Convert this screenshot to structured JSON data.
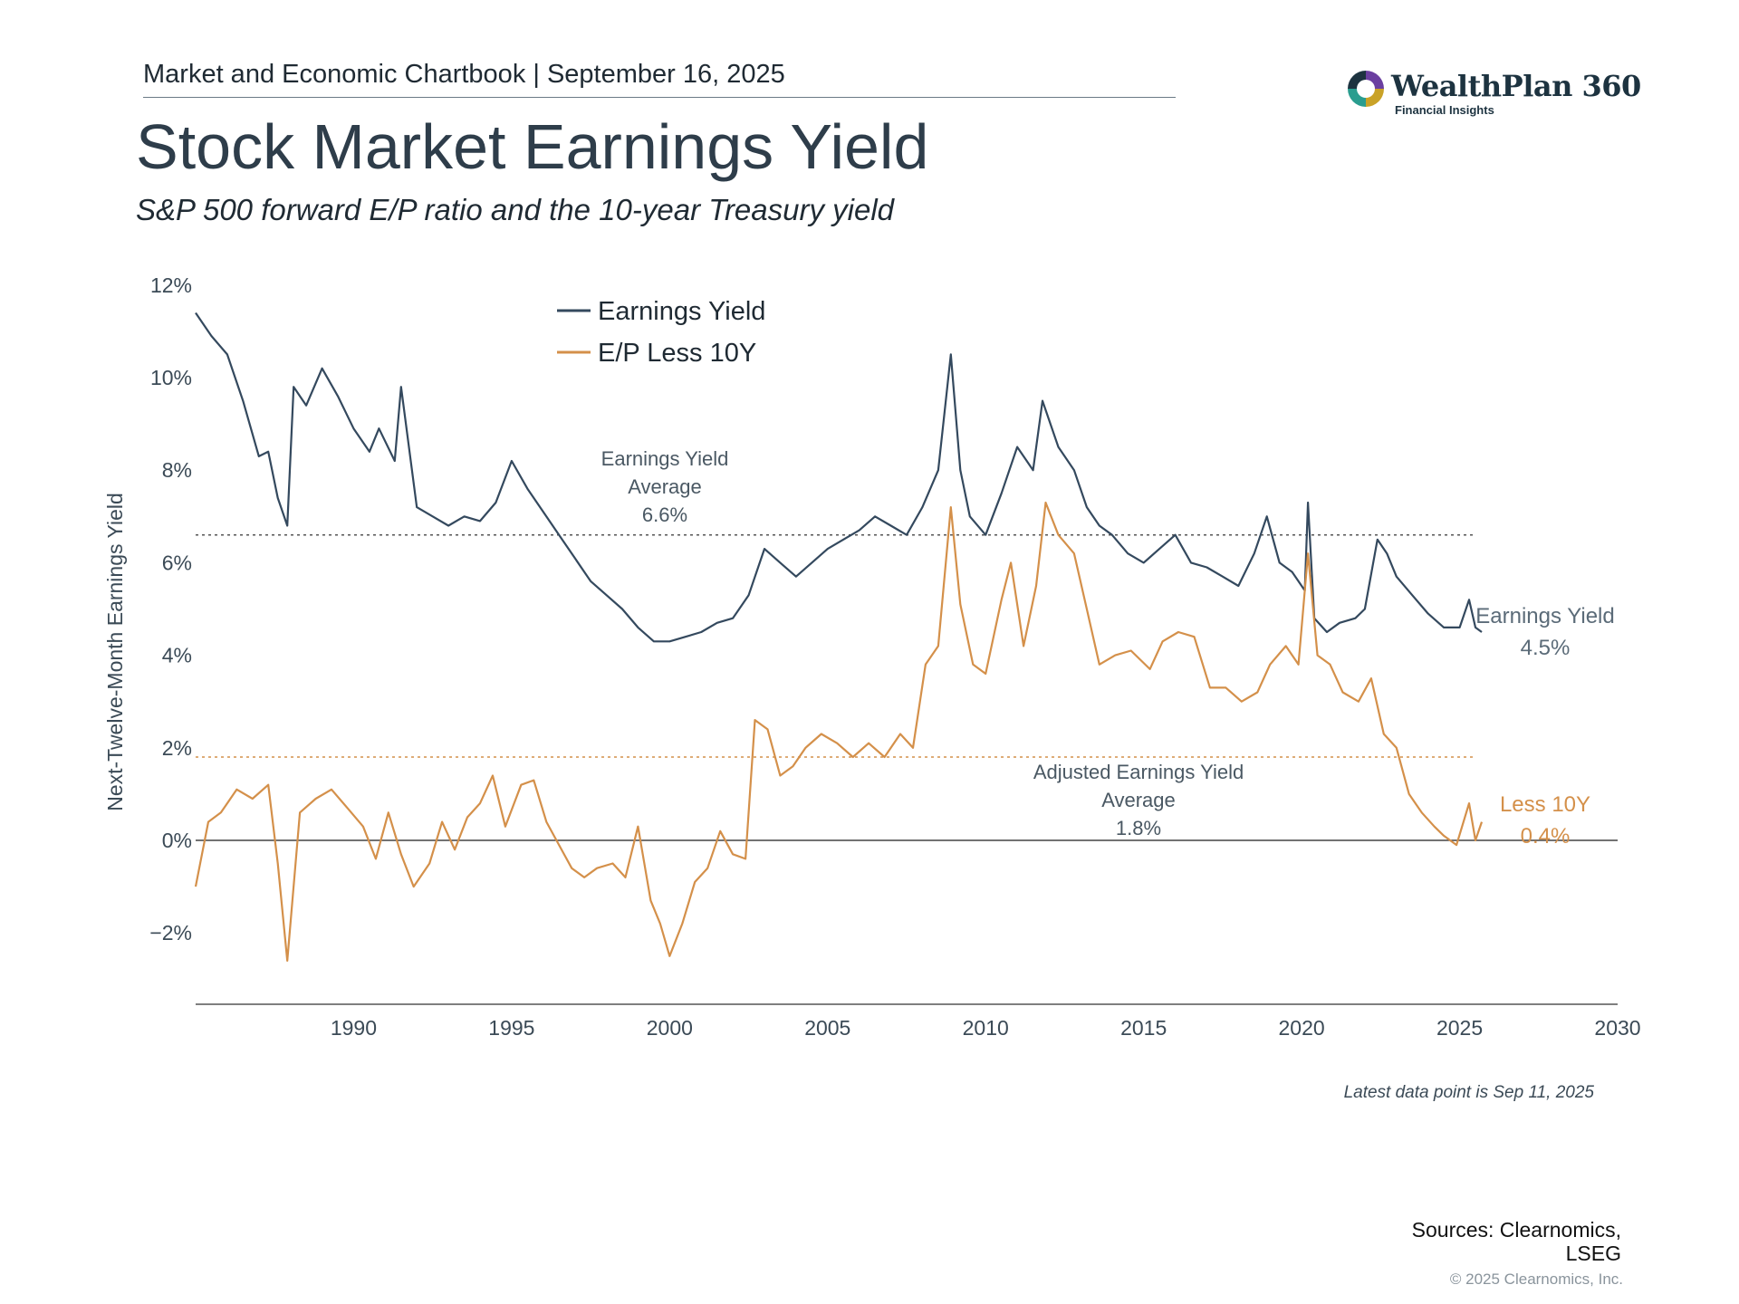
{
  "header": {
    "chartbook_line": "Market and Economic Chartbook | September 16, 2025",
    "title": "Stock Market Earnings Yield",
    "subtitle": "S&P 500 forward E/P ratio and the 10-year Treasury yield"
  },
  "logo": {
    "name": "WealthPlan 360",
    "tagline": "Financial Insights",
    "colors": [
      "#6b3fa0",
      "#2a9d8f",
      "#c9a227",
      "#1d3340"
    ]
  },
  "chart_data": {
    "type": "line",
    "ylabel": "Next-Twelve-Month Earnings Yield",
    "xlim": [
      1985,
      2030
    ],
    "ylim": [
      -3.5,
      12
    ],
    "y_ticks": [
      12,
      10,
      8,
      6,
      4,
      2,
      0,
      -2
    ],
    "y_tick_labels": [
      "12%",
      "10%",
      "8%",
      "6%",
      "4%",
      "2%",
      "0%",
      "−2%"
    ],
    "x_ticks": [
      1990,
      1995,
      2000,
      2005,
      2010,
      2015,
      2020,
      2025,
      2030
    ],
    "x_tick_labels": [
      "1990",
      "1995",
      "2000",
      "2005",
      "2010",
      "2015",
      "2020",
      "2025",
      "2030"
    ],
    "legend": {
      "position": "top-left",
      "entries": [
        "Earnings Yield",
        "E/P Less 10Y"
      ]
    },
    "series": [
      {
        "name": "Earnings Yield",
        "color": "#34495e",
        "points": [
          [
            1985.0,
            11.4
          ],
          [
            1985.5,
            10.9
          ],
          [
            1986.0,
            10.5
          ],
          [
            1986.5,
            9.5
          ],
          [
            1987.0,
            8.3
          ],
          [
            1987.3,
            8.4
          ],
          [
            1987.6,
            7.4
          ],
          [
            1987.9,
            6.8
          ],
          [
            1988.1,
            9.8
          ],
          [
            1988.5,
            9.4
          ],
          [
            1989.0,
            10.2
          ],
          [
            1989.5,
            9.6
          ],
          [
            1990.0,
            8.9
          ],
          [
            1990.5,
            8.4
          ],
          [
            1990.8,
            8.9
          ],
          [
            1991.3,
            8.2
          ],
          [
            1991.5,
            9.8
          ],
          [
            1992.0,
            7.2
          ],
          [
            1992.5,
            7.0
          ],
          [
            1993.0,
            6.8
          ],
          [
            1993.5,
            7.0
          ],
          [
            1994.0,
            6.9
          ],
          [
            1994.5,
            7.3
          ],
          [
            1995.0,
            8.2
          ],
          [
            1995.5,
            7.6
          ],
          [
            1996.0,
            7.1
          ],
          [
            1996.5,
            6.6
          ],
          [
            1997.0,
            6.1
          ],
          [
            1997.5,
            5.6
          ],
          [
            1998.0,
            5.3
          ],
          [
            1998.5,
            5.0
          ],
          [
            1999.0,
            4.6
          ],
          [
            1999.5,
            4.3
          ],
          [
            2000.0,
            4.3
          ],
          [
            2000.5,
            4.4
          ],
          [
            2001.0,
            4.5
          ],
          [
            2001.5,
            4.7
          ],
          [
            2002.0,
            4.8
          ],
          [
            2002.5,
            5.3
          ],
          [
            2003.0,
            6.3
          ],
          [
            2003.5,
            6.0
          ],
          [
            2004.0,
            5.7
          ],
          [
            2004.5,
            6.0
          ],
          [
            2005.0,
            6.3
          ],
          [
            2005.5,
            6.5
          ],
          [
            2006.0,
            6.7
          ],
          [
            2006.5,
            7.0
          ],
          [
            2007.0,
            6.8
          ],
          [
            2007.5,
            6.6
          ],
          [
            2008.0,
            7.2
          ],
          [
            2008.5,
            8.0
          ],
          [
            2008.9,
            10.5
          ],
          [
            2009.2,
            8.0
          ],
          [
            2009.5,
            7.0
          ],
          [
            2010.0,
            6.6
          ],
          [
            2010.5,
            7.5
          ],
          [
            2011.0,
            8.5
          ],
          [
            2011.5,
            8.0
          ],
          [
            2011.8,
            9.5
          ],
          [
            2012.3,
            8.5
          ],
          [
            2012.8,
            8.0
          ],
          [
            2013.2,
            7.2
          ],
          [
            2013.6,
            6.8
          ],
          [
            2014.0,
            6.6
          ],
          [
            2014.5,
            6.2
          ],
          [
            2015.0,
            6.0
          ],
          [
            2015.5,
            6.3
          ],
          [
            2016.0,
            6.6
          ],
          [
            2016.5,
            6.0
          ],
          [
            2017.0,
            5.9
          ],
          [
            2017.5,
            5.7
          ],
          [
            2018.0,
            5.5
          ],
          [
            2018.5,
            6.2
          ],
          [
            2018.9,
            7.0
          ],
          [
            2019.3,
            6.0
          ],
          [
            2019.7,
            5.8
          ],
          [
            2020.1,
            5.4
          ],
          [
            2020.2,
            7.3
          ],
          [
            2020.4,
            4.8
          ],
          [
            2020.8,
            4.5
          ],
          [
            2021.2,
            4.7
          ],
          [
            2021.7,
            4.8
          ],
          [
            2022.0,
            5.0
          ],
          [
            2022.4,
            6.5
          ],
          [
            2022.7,
            6.2
          ],
          [
            2023.0,
            5.7
          ],
          [
            2023.5,
            5.3
          ],
          [
            2024.0,
            4.9
          ],
          [
            2024.5,
            4.6
          ],
          [
            2025.0,
            4.6
          ],
          [
            2025.3,
            5.2
          ],
          [
            2025.5,
            4.6
          ],
          [
            2025.7,
            4.5
          ]
        ]
      },
      {
        "name": "E/P Less 10Y",
        "color": "#d4904a",
        "points": [
          [
            1985.0,
            -1.0
          ],
          [
            1985.4,
            0.4
          ],
          [
            1985.8,
            0.6
          ],
          [
            1986.3,
            1.1
          ],
          [
            1986.8,
            0.9
          ],
          [
            1987.3,
            1.2
          ],
          [
            1987.6,
            -0.5
          ],
          [
            1987.9,
            -2.6
          ],
          [
            1988.3,
            0.6
          ],
          [
            1988.8,
            0.9
          ],
          [
            1989.3,
            1.1
          ],
          [
            1989.8,
            0.7
          ],
          [
            1990.3,
            0.3
          ],
          [
            1990.7,
            -0.4
          ],
          [
            1991.1,
            0.6
          ],
          [
            1991.5,
            -0.3
          ],
          [
            1991.9,
            -1.0
          ],
          [
            1992.4,
            -0.5
          ],
          [
            1992.8,
            0.4
          ],
          [
            1993.2,
            -0.2
          ],
          [
            1993.6,
            0.5
          ],
          [
            1994.0,
            0.8
          ],
          [
            1994.4,
            1.4
          ],
          [
            1994.8,
            0.3
          ],
          [
            1995.3,
            1.2
          ],
          [
            1995.7,
            1.3
          ],
          [
            1996.1,
            0.4
          ],
          [
            1996.5,
            -0.1
          ],
          [
            1996.9,
            -0.6
          ],
          [
            1997.3,
            -0.8
          ],
          [
            1997.7,
            -0.6
          ],
          [
            1998.2,
            -0.5
          ],
          [
            1998.6,
            -0.8
          ],
          [
            1999.0,
            0.3
          ],
          [
            1999.4,
            -1.3
          ],
          [
            1999.7,
            -1.8
          ],
          [
            2000.0,
            -2.5
          ],
          [
            2000.4,
            -1.8
          ],
          [
            2000.8,
            -0.9
          ],
          [
            2001.2,
            -0.6
          ],
          [
            2001.6,
            0.2
          ],
          [
            2002.0,
            -0.3
          ],
          [
            2002.4,
            -0.4
          ],
          [
            2002.7,
            2.6
          ],
          [
            2003.1,
            2.4
          ],
          [
            2003.5,
            1.4
          ],
          [
            2003.9,
            1.6
          ],
          [
            2004.3,
            2.0
          ],
          [
            2004.8,
            2.3
          ],
          [
            2005.3,
            2.1
          ],
          [
            2005.8,
            1.8
          ],
          [
            2006.3,
            2.1
          ],
          [
            2006.8,
            1.8
          ],
          [
            2007.3,
            2.3
          ],
          [
            2007.7,
            2.0
          ],
          [
            2008.1,
            3.8
          ],
          [
            2008.5,
            4.2
          ],
          [
            2008.9,
            7.2
          ],
          [
            2009.2,
            5.1
          ],
          [
            2009.6,
            3.8
          ],
          [
            2010.0,
            3.6
          ],
          [
            2010.5,
            5.2
          ],
          [
            2010.8,
            6.0
          ],
          [
            2011.2,
            4.2
          ],
          [
            2011.6,
            5.5
          ],
          [
            2011.9,
            7.3
          ],
          [
            2012.3,
            6.6
          ],
          [
            2012.8,
            6.2
          ],
          [
            2013.2,
            5.0
          ],
          [
            2013.6,
            3.8
          ],
          [
            2014.1,
            4.0
          ],
          [
            2014.6,
            4.1
          ],
          [
            2015.2,
            3.7
          ],
          [
            2015.6,
            4.3
          ],
          [
            2016.1,
            4.5
          ],
          [
            2016.6,
            4.4
          ],
          [
            2017.1,
            3.3
          ],
          [
            2017.6,
            3.3
          ],
          [
            2018.1,
            3.0
          ],
          [
            2018.6,
            3.2
          ],
          [
            2019.0,
            3.8
          ],
          [
            2019.5,
            4.2
          ],
          [
            2019.9,
            3.8
          ],
          [
            2020.2,
            6.2
          ],
          [
            2020.5,
            4.0
          ],
          [
            2020.9,
            3.8
          ],
          [
            2021.3,
            3.2
          ],
          [
            2021.8,
            3.0
          ],
          [
            2022.2,
            3.5
          ],
          [
            2022.6,
            2.3
          ],
          [
            2023.0,
            2.0
          ],
          [
            2023.4,
            1.0
          ],
          [
            2023.8,
            0.6
          ],
          [
            2024.2,
            0.3
          ],
          [
            2024.5,
            0.1
          ],
          [
            2024.9,
            -0.1
          ],
          [
            2025.3,
            0.8
          ],
          [
            2025.5,
            0.0
          ],
          [
            2025.7,
            0.4
          ]
        ]
      }
    ],
    "reference_lines": [
      {
        "series": "Earnings Yield",
        "value": 6.6,
        "style": "dotted"
      },
      {
        "series": "E/P Less 10Y",
        "value": 1.8,
        "style": "dotted"
      },
      {
        "value": 0,
        "style": "solid"
      }
    ],
    "annotations": [
      {
        "lines": [
          "Earnings Yield",
          "Average",
          "6.6%"
        ]
      },
      {
        "lines": [
          "Adjusted Earnings Yield",
          "Average",
          "1.8%"
        ]
      },
      {
        "lines": [
          "Earnings Yield",
          "4.5%"
        ]
      },
      {
        "lines": [
          "Less 10Y",
          "0.4%"
        ]
      }
    ],
    "grid": false
  },
  "footnote": "Latest data point is Sep 11, 2025",
  "sources": [
    "Sources: Clearnomics,",
    "LSEG"
  ],
  "copyright": "© 2025 Clearnomics, Inc."
}
